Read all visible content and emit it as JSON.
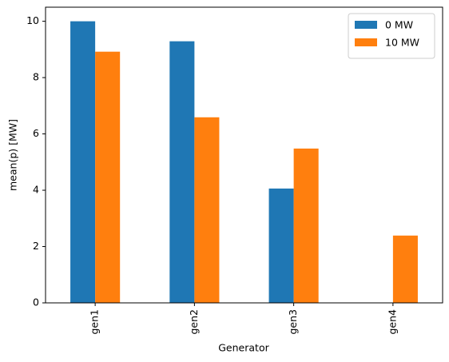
{
  "chart_data": {
    "type": "bar",
    "xlabel": "Generator",
    "ylabel": "mean(p) [MW]",
    "categories": [
      "gen1",
      "gen2",
      "gen3",
      "gen4"
    ],
    "series": [
      {
        "name": "0 MW",
        "color": "#1f77b4",
        "values": [
          10.0,
          9.29,
          4.06,
          0
        ]
      },
      {
        "name": "10 MW",
        "color": "#ff7f0e",
        "values": [
          8.92,
          6.59,
          5.48,
          2.39
        ]
      }
    ],
    "ylim": [
      0,
      10.5
    ],
    "yticks": [
      0,
      2,
      4,
      6,
      8,
      10
    ],
    "grid": false,
    "legend": "upper right"
  }
}
